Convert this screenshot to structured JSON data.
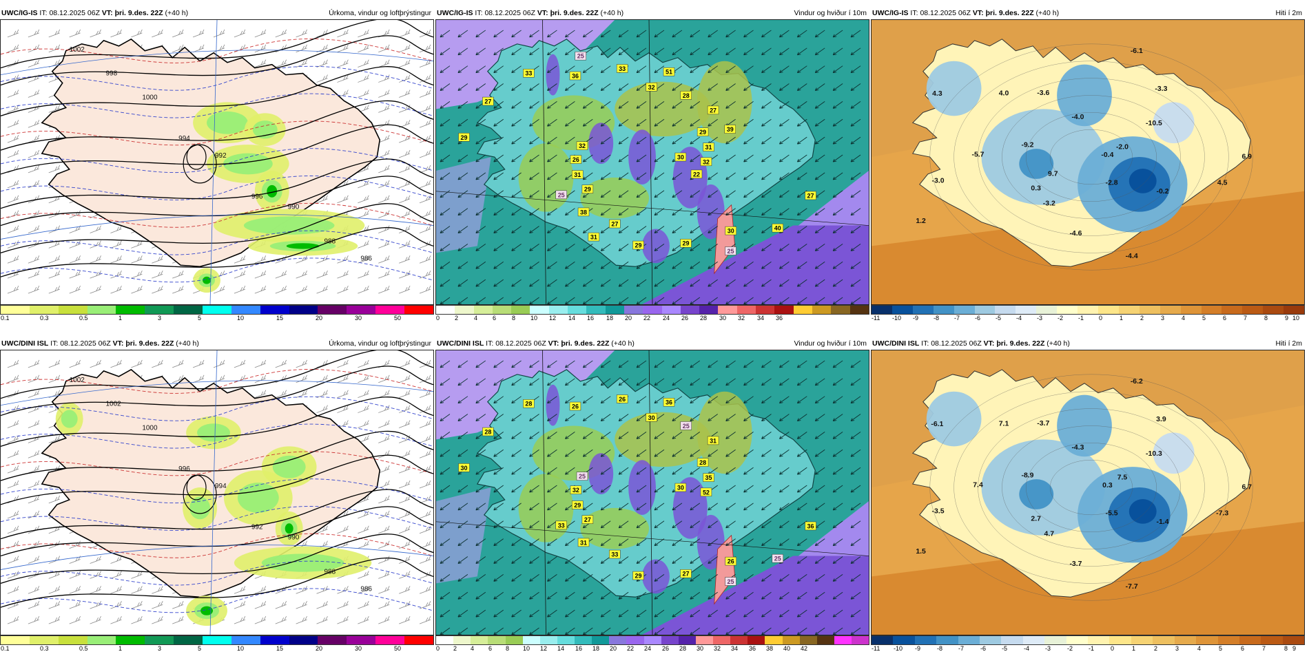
{
  "panels": [
    {
      "id": "igis-precip",
      "model": "UWC/IG-IS",
      "it_label": "IT:",
      "it_value": "08.12.2025 06Z",
      "vt_label": "VT:",
      "vt_value": "þri. 9.des. 22Z",
      "lead": "(+40 h)",
      "title": "Úrkoma, vindur og loftþrýstingur",
      "type": "precip",
      "colors": [
        "#ffff99",
        "#e0f06a",
        "#c8e03c",
        "#99ee77",
        "#00bb00",
        "#119955",
        "#006644",
        "#00ffee",
        "#3388ff",
        "#0000cc",
        "#000088",
        "#660066",
        "#990099",
        "#ff0099",
        "#ff0000"
      ],
      "ticks": [
        "0.1",
        "0.3",
        "0.5",
        "1",
        "3",
        "5",
        "10",
        "15",
        "20",
        "30",
        "50"
      ],
      "isobars": [
        "1002",
        "998",
        "1000",
        "994",
        "992",
        "996",
        "990",
        "988",
        "986"
      ],
      "values": []
    },
    {
      "id": "igis-wind",
      "model": "UWC/IG-IS",
      "it_label": "IT:",
      "it_value": "08.12.2025 06Z",
      "vt_label": "VT:",
      "vt_value": "þri. 9.des. 22Z",
      "lead": "(+40 h)",
      "title": "Vindur og hviður í 10m",
      "type": "wind",
      "colors": [
        "#ffffff",
        "#eef7cc",
        "#d6ee99",
        "#b8dd77",
        "#99cc55",
        "#ccffff",
        "#99eeee",
        "#66dddd",
        "#33bbbb",
        "#119999",
        "#8877dd",
        "#9966ee",
        "#aa88ff",
        "#7744cc",
        "#5522aa",
        "#ff9999",
        "#ee6666",
        "#cc3333",
        "#aa1111",
        "#ffcc33",
        "#cc9922",
        "#886622",
        "#553311"
      ],
      "ticks": [
        "0",
        "2",
        "4",
        "6",
        "8",
        "10",
        "12",
        "14",
        "16",
        "18",
        "20",
        "22",
        "24",
        "26",
        "28",
        "30",
        "32",
        "34",
        "36"
      ],
      "values": [
        "30",
        "29",
        "32",
        "30",
        "29",
        "29",
        "27",
        "36",
        "27",
        "31",
        "28",
        "29",
        "27",
        "31",
        "38",
        "33",
        "40",
        "26",
        "27",
        "29",
        "33",
        "32",
        "25",
        "51",
        "25",
        "32",
        "39",
        "31",
        "25",
        "22"
      ]
    },
    {
      "id": "igis-temp",
      "model": "UWC/IG-IS",
      "it_label": "IT:",
      "it_value": "08.12.2025 06Z",
      "vt_label": "VT:",
      "vt_value": "þri. 9.des. 22Z",
      "lead": "(+40 h)",
      "title": "Hiti í 2m",
      "type": "temp",
      "colors": [
        "#08306b",
        "#08519c",
        "#2171b5",
        "#4292c6",
        "#6baed6",
        "#9ecae1",
        "#c6dbef",
        "#deebf7",
        "#e8f2d8",
        "#ffffcc",
        "#fff3b0",
        "#fde68a",
        "#f6d374",
        "#eec060",
        "#e6aa4c",
        "#de9438",
        "#d47e28",
        "#c86a1c",
        "#bb5a14",
        "#aa4a10",
        "#993a0c"
      ],
      "ticks": [
        "-11",
        "-10",
        "-9",
        "-8",
        "-7",
        "-6",
        "-5",
        "-4",
        "-3",
        "-2",
        "-1",
        "0",
        "1",
        "2",
        "3",
        "4",
        "5",
        "6",
        "7",
        "8",
        "9",
        "10"
      ],
      "values": [
        "-0.4",
        "0.3",
        "-3.6",
        "4.5",
        "1.2",
        "-4.0",
        "-0.2",
        "-3.0",
        "-6.1",
        "-2.8",
        "-5.7",
        "-3.3",
        "-4.4",
        "-9.2",
        "-10.5",
        "-4.6",
        "4.3",
        "-2.0",
        "-3.2",
        "4.0",
        "6.9",
        "9.7"
      ]
    },
    {
      "id": "dini-precip",
      "model": "UWC/DINI ISL",
      "it_label": "IT:",
      "it_value": "08.12.2025 06Z",
      "vt_label": "VT:",
      "vt_value": "þri. 9.des. 22Z",
      "lead": "(+40 h)",
      "title": "Úrkoma, vindur og loftþrýstingur",
      "type": "precip",
      "colors": [
        "#ffff99",
        "#e0f06a",
        "#c8e03c",
        "#99ee77",
        "#00bb00",
        "#119955",
        "#006644",
        "#00ffee",
        "#3388ff",
        "#0000cc",
        "#000088",
        "#660066",
        "#990099",
        "#ff0099",
        "#ff0000"
      ],
      "ticks": [
        "0.1",
        "0.3",
        "0.5",
        "1",
        "3",
        "5",
        "10",
        "15",
        "20",
        "30",
        "50"
      ],
      "isobars": [
        "1002",
        "1002",
        "1000",
        "996",
        "994",
        "992",
        "990",
        "988",
        "986"
      ],
      "values": []
    },
    {
      "id": "dini-wind",
      "model": "UWC/DINI ISL",
      "it_label": "IT:",
      "it_value": "08.12.2025 06Z",
      "vt_label": "VT:",
      "vt_value": "þri. 9.des. 22Z",
      "lead": "(+40 h)",
      "title": "Vindur og hviður í 10m",
      "type": "wind",
      "colors": [
        "#ffffff",
        "#eef7cc",
        "#d6ee99",
        "#b8dd77",
        "#99cc55",
        "#ccffff",
        "#99eeee",
        "#66dddd",
        "#33bbbb",
        "#119999",
        "#8877dd",
        "#9966ee",
        "#aa88ff",
        "#7744cc",
        "#5522aa",
        "#ff9999",
        "#ee6666",
        "#cc3333",
        "#aa1111",
        "#ffcc33",
        "#cc9922",
        "#886622",
        "#553311",
        "#ff33ff",
        "#cc33cc"
      ],
      "ticks": [
        "0",
        "2",
        "4",
        "6",
        "8",
        "10",
        "12",
        "14",
        "16",
        "18",
        "20",
        "22",
        "24",
        "26",
        "28",
        "30",
        "32",
        "34",
        "36",
        "38",
        "40",
        "42"
      ],
      "values": [
        "30",
        "27",
        "30",
        "26",
        "30",
        "28",
        "33",
        "26",
        "36",
        "29",
        "25",
        "27",
        "28",
        "35",
        "31",
        "26",
        "25",
        "32",
        "31",
        "29",
        "28",
        "52",
        "33",
        "36",
        "25",
        "25"
      ]
    },
    {
      "id": "dini-temp",
      "model": "UWC/DINI ISL",
      "it_label": "IT:",
      "it_value": "08.12.2025 06Z",
      "vt_label": "VT:",
      "vt_value": "þri. 9.des. 22Z",
      "lead": "(+40 h)",
      "title": "Hiti í 2m",
      "type": "temp",
      "colors": [
        "#08306b",
        "#08519c",
        "#2171b5",
        "#4292c6",
        "#6baed6",
        "#9ecae1",
        "#c6dbef",
        "#deebf7",
        "#e8f2d8",
        "#ffffcc",
        "#fff3b0",
        "#fde68a",
        "#f6d374",
        "#eec060",
        "#e6aa4c",
        "#de9438",
        "#d47e28",
        "#c86a1c",
        "#bb5a14",
        "#aa4a10"
      ],
      "ticks": [
        "-11",
        "-10",
        "-9",
        "-8",
        "-7",
        "-6",
        "-5",
        "-4",
        "-3",
        "-2",
        "-1",
        "0",
        "1",
        "2",
        "3",
        "4",
        "5",
        "6",
        "7",
        "8",
        "9"
      ],
      "values": [
        "0.3",
        "2.7",
        "-3.7",
        "-7.3",
        "1.5",
        "-4.3",
        "-1.4",
        "-3.5",
        "-6.2",
        "-5.5",
        "7.4",
        "3.9",
        "-7.7",
        "-8.9",
        "-10.3",
        "-3.7",
        "-6.1",
        "7.5",
        "4.7",
        "7.1",
        "6.7"
      ]
    }
  ]
}
